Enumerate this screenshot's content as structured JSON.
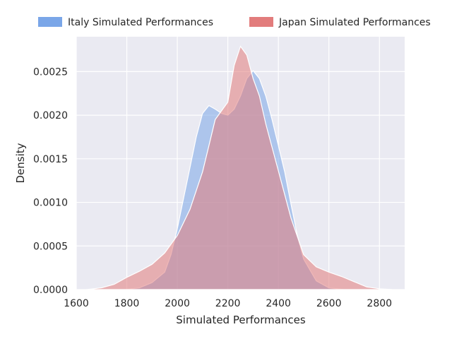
{
  "chart_data": {
    "type": "area",
    "xlabel": "Simulated Performances",
    "ylabel": "Density",
    "xlim": [
      1600,
      2900
    ],
    "ylim": [
      0,
      0.0029
    ],
    "xticks": [
      1600,
      1800,
      2000,
      2200,
      2400,
      2600,
      2800
    ],
    "xtick_labels": [
      "1600",
      "1800",
      "2000",
      "2200",
      "2400",
      "2600",
      "2800"
    ],
    "yticks": [
      0,
      0.0005,
      0.001,
      0.0015,
      0.002,
      0.0025
    ],
    "ytick_labels": [
      "0.0000",
      "0.0005",
      "0.0010",
      "0.0015",
      "0.0020",
      "0.0025"
    ],
    "grid": true,
    "legend_position": "top",
    "series": [
      {
        "name": "Italy Simulated Performances",
        "color": "#7aa6e8",
        "points": [
          [
            1790,
            0
          ],
          [
            1850,
            2e-05
          ],
          [
            1900,
            8e-05
          ],
          [
            1950,
            0.0002
          ],
          [
            1975,
            0.0004
          ],
          [
            2000,
            0.0007
          ],
          [
            2025,
            0.00105
          ],
          [
            2050,
            0.0014
          ],
          [
            2075,
            0.00175
          ],
          [
            2100,
            0.00202
          ],
          [
            2125,
            0.00211
          ],
          [
            2150,
            0.00207
          ],
          [
            2175,
            0.00202
          ],
          [
            2200,
            0.002
          ],
          [
            2225,
            0.00207
          ],
          [
            2250,
            0.00222
          ],
          [
            2275,
            0.00242
          ],
          [
            2300,
            0.00251
          ],
          [
            2325,
            0.00242
          ],
          [
            2350,
            0.00222
          ],
          [
            2375,
            0.00195
          ],
          [
            2400,
            0.00165
          ],
          [
            2425,
            0.00135
          ],
          [
            2450,
            0.00098
          ],
          [
            2475,
            0.00062
          ],
          [
            2500,
            0.00035
          ],
          [
            2550,
            0.0001
          ],
          [
            2600,
            2e-05
          ],
          [
            2660,
            0
          ]
        ]
      },
      {
        "name": "Japan Simulated Performances",
        "color": "#e27c7c",
        "points": [
          [
            1640,
            0
          ],
          [
            1700,
            2e-05
          ],
          [
            1750,
            6e-05
          ],
          [
            1800,
            0.00014
          ],
          [
            1850,
            0.00021
          ],
          [
            1900,
            0.00029
          ],
          [
            1950,
            0.00042
          ],
          [
            2000,
            0.00062
          ],
          [
            2050,
            0.00092
          ],
          [
            2100,
            0.00135
          ],
          [
            2125,
            0.00165
          ],
          [
            2150,
            0.00195
          ],
          [
            2175,
            0.00205
          ],
          [
            2200,
            0.00215
          ],
          [
            2225,
            0.00257
          ],
          [
            2250,
            0.00279
          ],
          [
            2275,
            0.00269
          ],
          [
            2300,
            0.00242
          ],
          [
            2325,
            0.00222
          ],
          [
            2350,
            0.0019
          ],
          [
            2400,
            0.00136
          ],
          [
            2450,
            0.00082
          ],
          [
            2500,
            0.0004
          ],
          [
            2550,
            0.00026
          ],
          [
            2600,
            0.0002
          ],
          [
            2650,
            0.00015
          ],
          [
            2700,
            9e-05
          ],
          [
            2750,
            3e-05
          ],
          [
            2800,
            1e-05
          ],
          [
            2850,
            0
          ]
        ]
      }
    ]
  }
}
